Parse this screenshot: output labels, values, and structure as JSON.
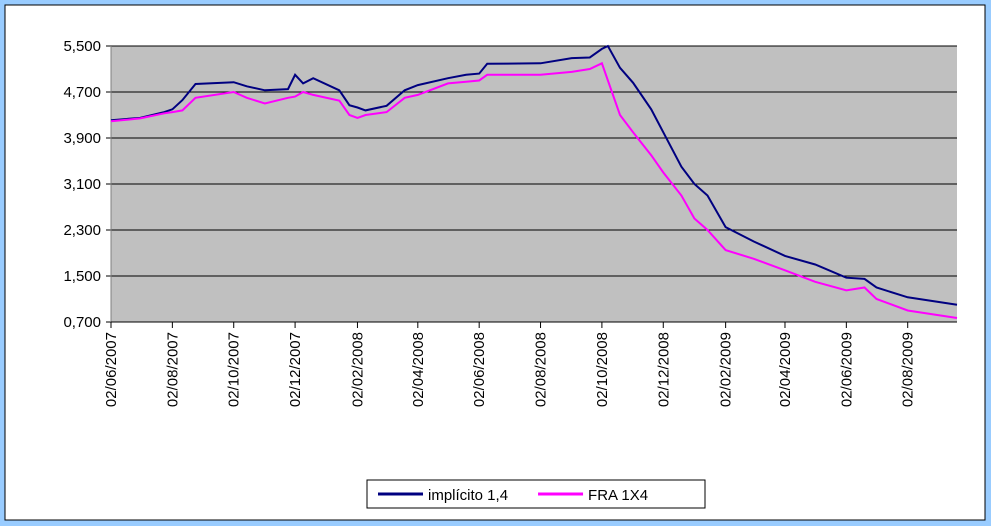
{
  "chart_data": {
    "type": "line",
    "x": [
      "02/06/2007",
      "01/07/2007",
      "25/07/2007",
      "02/08/2007",
      "12/08/2007",
      "25/08/2007",
      "02/10/2007",
      "15/10/2007",
      "02/11/2007",
      "25/11/2007",
      "02/12/2007",
      "10/12/2007",
      "20/12/2007",
      "15/01/2008",
      "25/01/2008",
      "02/02/2008",
      "10/02/2008",
      "02/03/2008",
      "20/03/2008",
      "02/04/2008",
      "02/05/2008",
      "20/05/2008",
      "02/06/2008",
      "10/06/2008",
      "02/08/2008",
      "02/09/2008",
      "20/09/2008",
      "02/10/2008",
      "08/10/2008",
      "20/10/2008",
      "02/11/2008",
      "20/11/2008",
      "02/12/2008",
      "20/12/2008",
      "02/01/2009",
      "15/01/2009",
      "02/02/2009",
      "02/03/2009",
      "02/04/2009",
      "02/05/2009",
      "02/06/2009",
      "20/06/2009",
      "02/07/2009",
      "02/08/2009",
      "20/09/2009"
    ],
    "series": [
      {
        "name": "implícito 1,4",
        "color": "#000080",
        "values": [
          4.21,
          4.25,
          4.35,
          4.4,
          4.56,
          4.84,
          4.87,
          4.8,
          4.73,
          4.75,
          5.0,
          4.85,
          4.94,
          4.73,
          4.47,
          4.43,
          4.38,
          4.46,
          4.73,
          4.82,
          4.94,
          5.0,
          5.02,
          5.19,
          5.2,
          5.29,
          5.3,
          5.45,
          5.5,
          5.12,
          4.86,
          4.4,
          4.0,
          3.4,
          3.1,
          2.9,
          2.35,
          2.1,
          1.85,
          1.7,
          1.47,
          1.45,
          1.3,
          1.13,
          1.0
        ]
      },
      {
        "name": "FRA 1X4",
        "color": "#ff00ff",
        "values": [
          4.19,
          4.24,
          4.33,
          4.35,
          4.38,
          4.6,
          4.7,
          4.6,
          4.5,
          4.6,
          4.62,
          4.7,
          4.65,
          4.55,
          4.3,
          4.25,
          4.3,
          4.35,
          4.6,
          4.65,
          4.85,
          4.88,
          4.9,
          5.0,
          5.0,
          5.05,
          5.1,
          5.2,
          4.9,
          4.3,
          4.0,
          3.6,
          3.3,
          2.9,
          2.5,
          2.3,
          1.95,
          1.8,
          1.6,
          1.4,
          1.25,
          1.3,
          1.1,
          0.9,
          0.77
        ]
      }
    ],
    "xlim": [
      "02/06/2007",
      "20/09/2009"
    ],
    "xticks": [
      "02/06/2007",
      "02/08/2007",
      "02/10/2007",
      "02/12/2007",
      "02/02/2008",
      "02/04/2008",
      "02/06/2008",
      "02/08/2008",
      "02/10/2008",
      "02/12/2008",
      "02/02/2009",
      "02/04/2009",
      "02/06/2009",
      "02/08/2009"
    ],
    "ylim": [
      0.7,
      5.5
    ],
    "yticks": [
      {
        "value": 0.7,
        "label": "0,700"
      },
      {
        "value": 1.5,
        "label": "1,500"
      },
      {
        "value": 2.3,
        "label": "2,300"
      },
      {
        "value": 3.1,
        "label": "3,100"
      },
      {
        "value": 3.9,
        "label": "3,900"
      },
      {
        "value": 4.7,
        "label": "4,700"
      },
      {
        "value": 5.5,
        "label": "5,500"
      }
    ],
    "grid": true,
    "legend": "bottom"
  }
}
